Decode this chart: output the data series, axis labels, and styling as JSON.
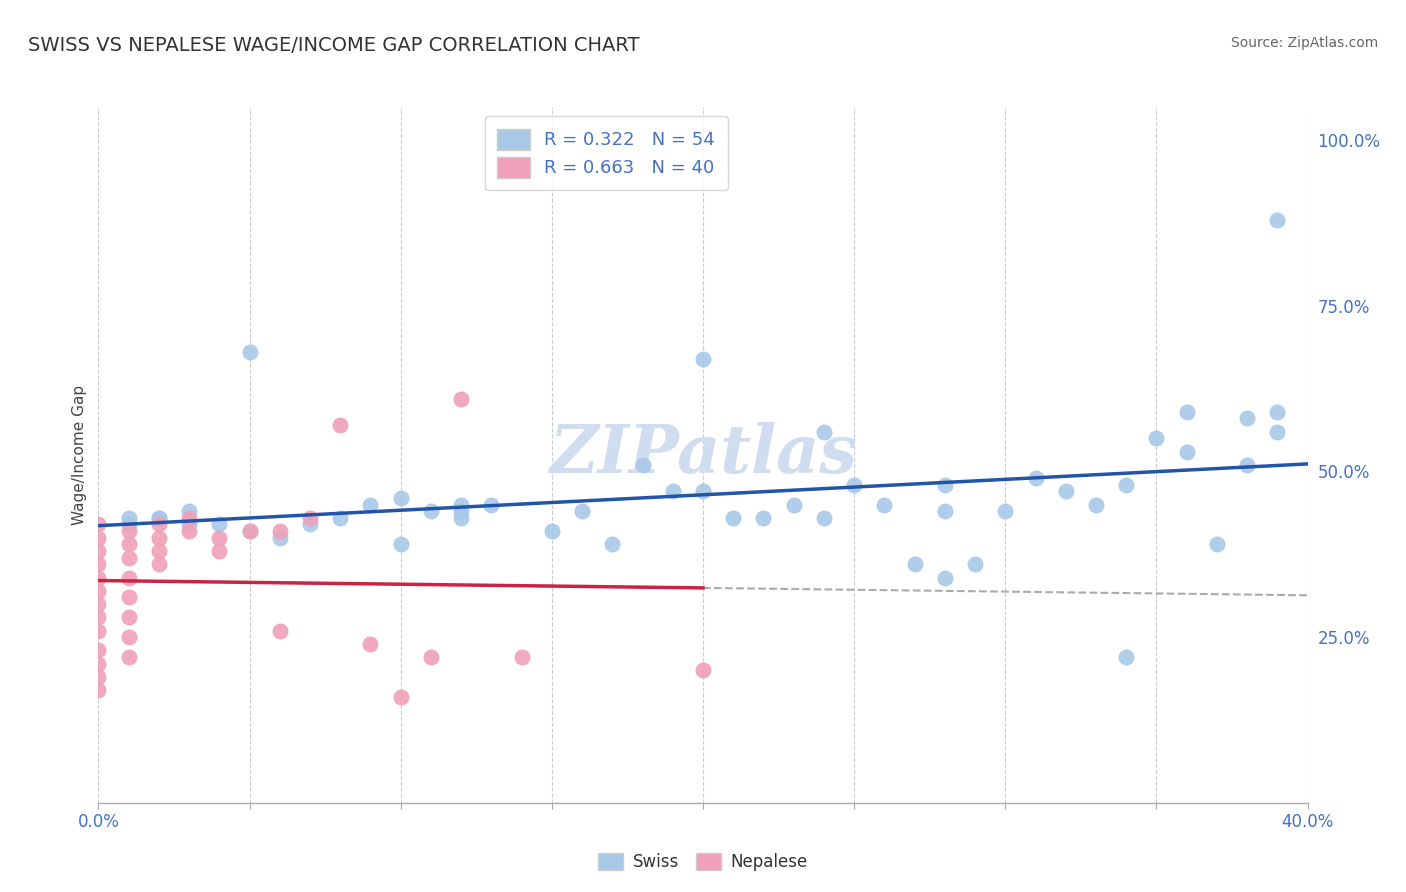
{
  "title": "SWISS VS NEPALESE WAGE/INCOME GAP CORRELATION CHART",
  "source": "Source: ZipAtlas.com",
  "ylabel": "Wage/Income Gap",
  "xlim": [
    0.0,
    0.4
  ],
  "ylim": [
    0.0,
    1.05
  ],
  "swiss_color": "#A8C8E8",
  "nepalese_color": "#F0A0B8",
  "swiss_line_color": "#2255AA",
  "nepalese_line_color": "#CC2244",
  "swiss_R": 0.322,
  "swiss_N": 54,
  "nepalese_R": 0.663,
  "nepalese_N": 40,
  "watermark": "ZIPatlas",
  "background_color": "#FFFFFF",
  "grid_color": "#CCCCCC",
  "swiss_x": [
    0.01,
    0.01,
    0.02,
    0.03,
    0.03,
    0.04,
    0.05,
    0.06,
    0.07,
    0.08,
    0.09,
    0.1,
    0.1,
    0.11,
    0.12,
    0.12,
    0.13,
    0.15,
    0.16,
    0.17,
    0.19,
    0.2,
    0.21,
    0.22,
    0.23,
    0.24,
    0.25,
    0.26,
    0.27,
    0.28,
    0.28,
    0.29,
    0.3,
    0.31,
    0.32,
    0.33,
    0.34,
    0.35,
    0.36,
    0.36,
    0.37,
    0.38,
    0.38,
    0.39,
    0.39,
    0.39,
    0.02,
    0.05,
    0.12,
    0.18,
    0.2,
    0.24,
    0.28,
    0.34
  ],
  "swiss_y": [
    0.42,
    0.43,
    0.43,
    0.42,
    0.44,
    0.42,
    0.41,
    0.4,
    0.42,
    0.43,
    0.45,
    0.39,
    0.46,
    0.44,
    0.43,
    0.45,
    0.45,
    0.41,
    0.44,
    0.39,
    0.47,
    0.47,
    0.43,
    0.43,
    0.45,
    0.56,
    0.48,
    0.45,
    0.36,
    0.48,
    0.44,
    0.36,
    0.44,
    0.49,
    0.47,
    0.45,
    0.48,
    0.55,
    0.53,
    0.59,
    0.39,
    0.58,
    0.51,
    0.56,
    0.59,
    0.88,
    0.43,
    0.68,
    0.44,
    0.51,
    0.67,
    0.43,
    0.34,
    0.22
  ],
  "nepalese_x": [
    0.0,
    0.0,
    0.0,
    0.0,
    0.0,
    0.0,
    0.0,
    0.0,
    0.0,
    0.0,
    0.0,
    0.0,
    0.0,
    0.01,
    0.01,
    0.01,
    0.01,
    0.01,
    0.01,
    0.01,
    0.01,
    0.02,
    0.02,
    0.02,
    0.02,
    0.03,
    0.03,
    0.04,
    0.04,
    0.05,
    0.06,
    0.06,
    0.07,
    0.08,
    0.09,
    0.1,
    0.11,
    0.12,
    0.14,
    0.2
  ],
  "nepalese_y": [
    0.42,
    0.4,
    0.38,
    0.36,
    0.34,
    0.32,
    0.3,
    0.28,
    0.26,
    0.23,
    0.21,
    0.19,
    0.17,
    0.41,
    0.39,
    0.37,
    0.34,
    0.31,
    0.28,
    0.25,
    0.22,
    0.42,
    0.4,
    0.38,
    0.36,
    0.43,
    0.41,
    0.4,
    0.38,
    0.41,
    0.41,
    0.26,
    0.43,
    0.57,
    0.24,
    0.16,
    0.22,
    0.61,
    0.22,
    0.2
  ]
}
